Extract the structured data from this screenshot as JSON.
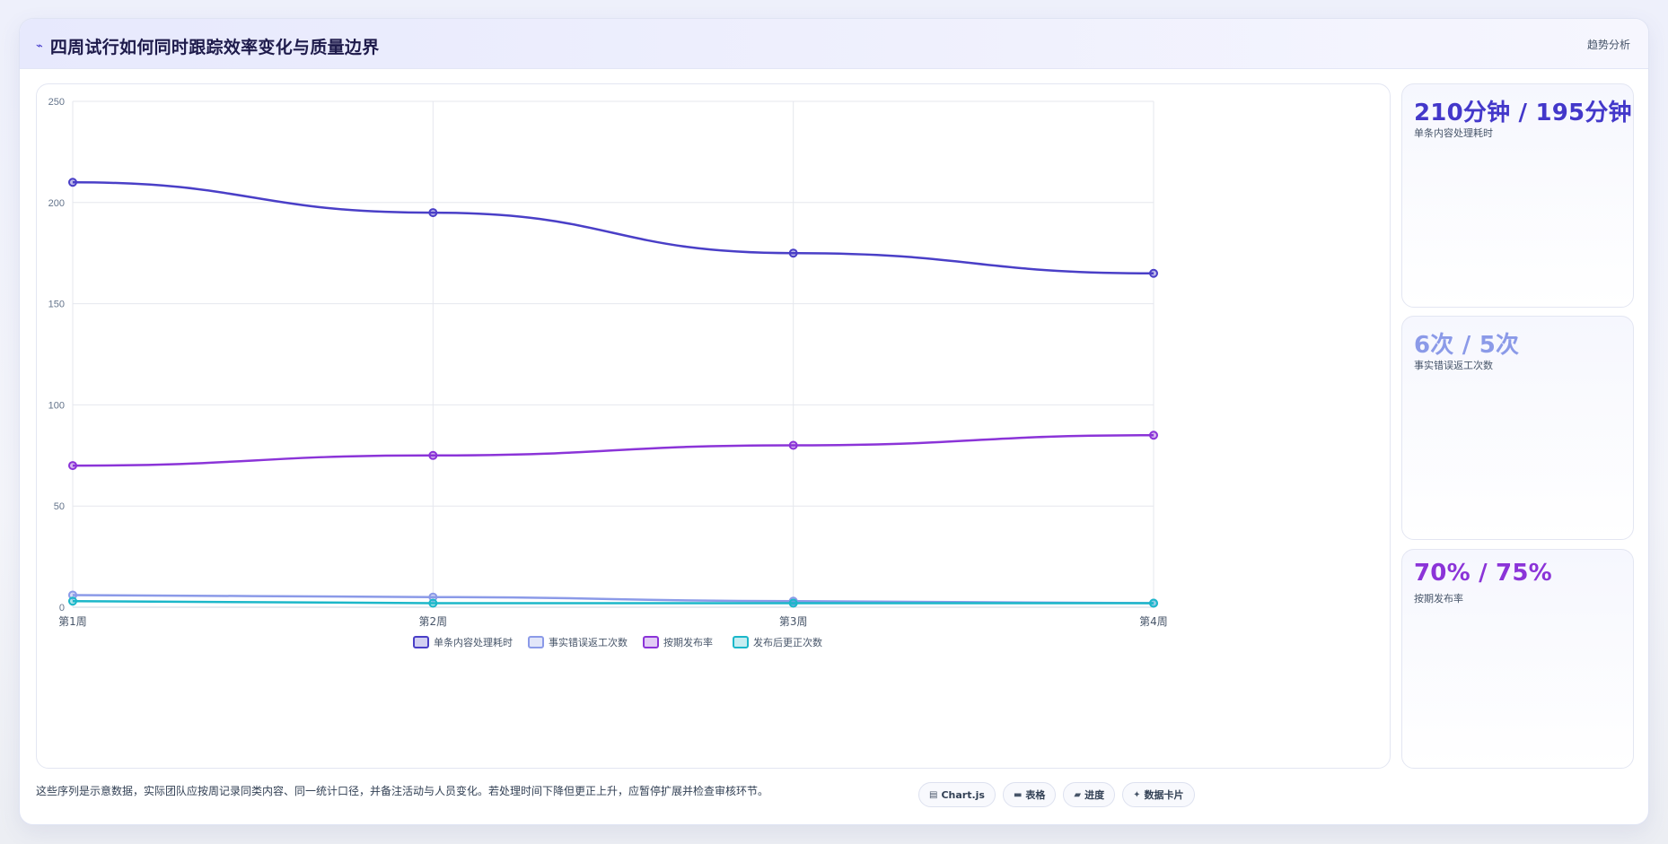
{
  "header": {
    "title": "四周试行如何同时跟踪效率变化与质量边界",
    "tag": "趋势分析",
    "icon": "pin-icon"
  },
  "chart_data": {
    "type": "line",
    "categories": [
      "第1周",
      "第2周",
      "第3周",
      "第4周"
    ],
    "ylim": [
      0,
      250
    ],
    "yticks": [
      0,
      50,
      100,
      150,
      200,
      250
    ],
    "grid": true,
    "legend_position": "bottom",
    "series": [
      {
        "name": "单条内容处理耗时",
        "values": [
          210,
          195,
          175,
          165
        ],
        "color": "#4a3fc7"
      },
      {
        "name": "事实错误返工次数",
        "values": [
          6,
          5,
          3,
          2
        ],
        "color": "#8b9ae8"
      },
      {
        "name": "按期发布率",
        "values": [
          70,
          75,
          80,
          85
        ],
        "color": "#8b34d8"
      },
      {
        "name": "发布后更正次数",
        "values": [
          3,
          2,
          2,
          2
        ],
        "color": "#1bb7c9"
      }
    ]
  },
  "stats": [
    {
      "value": "210分钟 / 195分钟",
      "label": "单条内容处理耗时",
      "color": "#4338ca"
    },
    {
      "value": "6次 / 5次",
      "label": "事实错误返工次数",
      "color": "#8b9ae8"
    },
    {
      "value": "70% / 75%",
      "label": "按期发布率",
      "color": "#8b34d8"
    }
  ],
  "footnote": "这些序列是示意数据，实际团队应按周记录同类内容、同一统计口径，并备注活动与人员变化。若处理时间下降但更正上升，应暂停扩展并检查审核环节。",
  "pills": [
    {
      "label": "Chart.js",
      "icon": "chart-icon"
    },
    {
      "label": "表格",
      "icon": "table-icon"
    },
    {
      "label": "进度",
      "icon": "progress-icon"
    },
    {
      "label": "数据卡片",
      "icon": "sparkle-icon"
    }
  ]
}
